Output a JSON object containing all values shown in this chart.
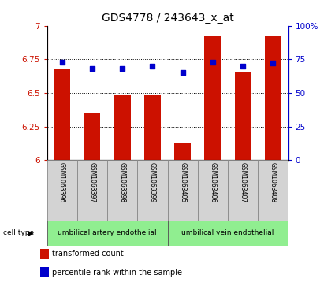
{
  "title": "GDS4778 / 243643_x_at",
  "samples": [
    "GSM1063396",
    "GSM1063397",
    "GSM1063398",
    "GSM1063399",
    "GSM1063405",
    "GSM1063406",
    "GSM1063407",
    "GSM1063408"
  ],
  "bar_values": [
    6.68,
    6.35,
    6.49,
    6.49,
    6.13,
    6.92,
    6.65,
    6.92
  ],
  "dot_values": [
    73,
    68,
    68,
    70,
    65,
    73,
    70,
    72
  ],
  "bar_color": "#cc1100",
  "dot_color": "#0000cc",
  "ymin": 6.0,
  "ymax": 7.0,
  "yticks": [
    6.0,
    6.25,
    6.5,
    6.75,
    7.0
  ],
  "ytick_labels": [
    "6",
    "6.25",
    "6.5",
    "6.75",
    "7"
  ],
  "y2min": 0,
  "y2max": 100,
  "y2ticks": [
    0,
    25,
    50,
    75,
    100
  ],
  "y2tick_labels": [
    "0",
    "25",
    "50",
    "75",
    "100%"
  ],
  "group1_label": "umbilical artery endothelial",
  "group2_label": "umbilical vein endothelial",
  "group1_indices": [
    0,
    1,
    2,
    3
  ],
  "group2_indices": [
    4,
    5,
    6,
    7
  ],
  "cell_type_label": "cell type",
  "legend_bar_label": "transformed count",
  "legend_dot_label": "percentile rank within the sample",
  "bar_color_legend": "#cc1100",
  "dot_color_legend": "#0000cc",
  "gray_bg": "#d3d3d3",
  "green_bg": "#90ee90",
  "title_fontsize": 10,
  "tick_fontsize": 7.5,
  "label_fontsize": 7,
  "legend_fontsize": 7
}
